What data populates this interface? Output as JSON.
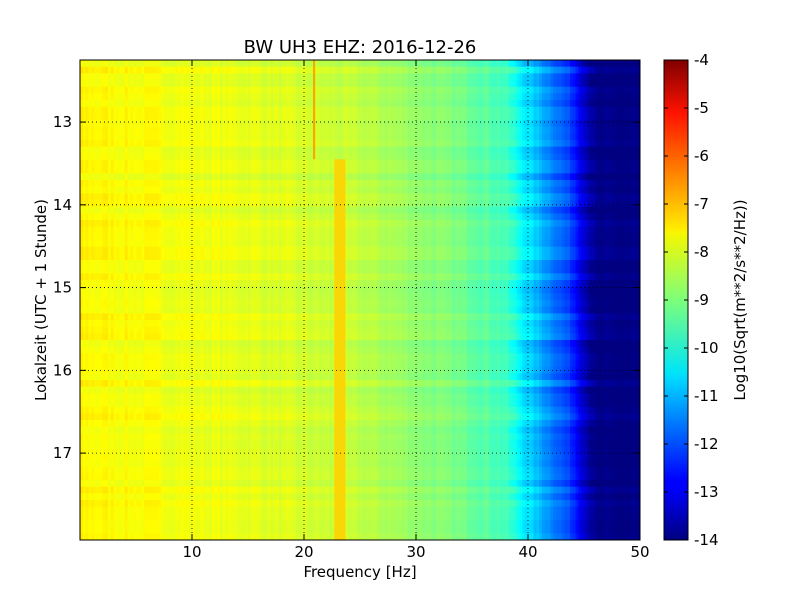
{
  "chart_data": {
    "type": "heatmap",
    "title": "BW UH3 EHZ: 2016-12-26",
    "xlabel": "Frequency [Hz]",
    "ylabel": "Lokalzeit (UTC + 1 Stunde)",
    "xlim": [
      0,
      50
    ],
    "ylim": [
      12.25,
      18.05
    ],
    "y_inverted": true,
    "x_ticks": [
      "10",
      "20",
      "30",
      "40",
      "50"
    ],
    "y_ticks": [
      "13",
      "14",
      "15",
      "16",
      "17"
    ],
    "grid": true,
    "colormap": "jet",
    "colorbar": {
      "label": "Log10(Sqrt(m**2/s**2/Hz))",
      "range": [
        -14,
        -4
      ],
      "ticks": [
        "-4",
        "-5",
        "-6",
        "-7",
        "-8",
        "-9",
        "-10",
        "-11",
        "-12",
        "-13",
        "-14"
      ]
    },
    "spectral_profile": {
      "frequency_hz": [
        0,
        5,
        10,
        15,
        20,
        25,
        30,
        35,
        38,
        40,
        42,
        44,
        45,
        46,
        50
      ],
      "log10_amplitude": [
        -7.7,
        -7.8,
        -7.9,
        -8.0,
        -8.2,
        -8.4,
        -8.8,
        -9.2,
        -9.6,
        -10.6,
        -11.4,
        -12.3,
        -13.2,
        -14.0,
        -14.0
      ]
    },
    "features": [
      {
        "name": "narrow peak",
        "frequency_hz": [
          20.8,
          21.0
        ],
        "time_h": [
          12.25,
          13.45
        ],
        "log10_amplitude": -6.8
      },
      {
        "name": "narrow peak",
        "frequency_hz": [
          22.7,
          23.7
        ],
        "time_h": [
          13.45,
          18.05
        ],
        "log10_amplitude": -7.3
      }
    ]
  }
}
